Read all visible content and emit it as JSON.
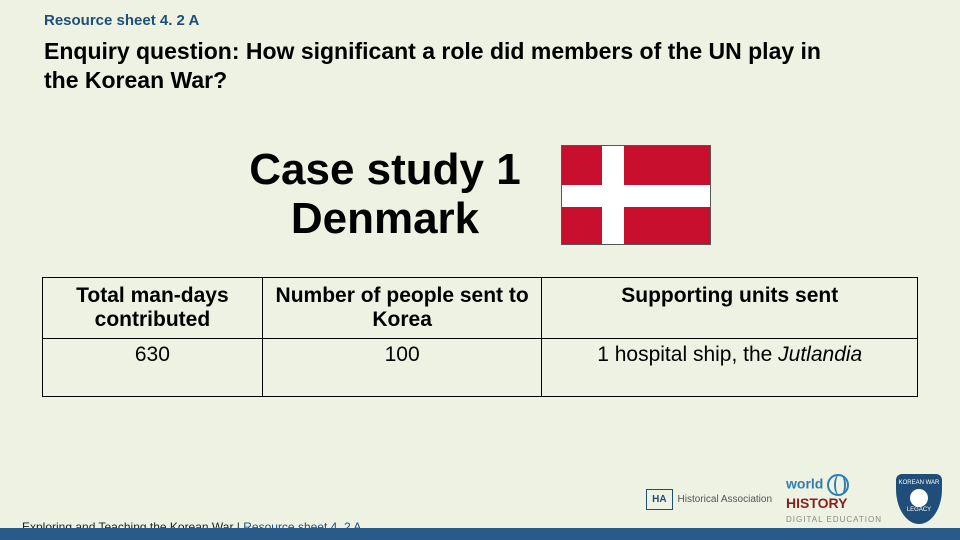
{
  "header": {
    "resource_label": "Resource sheet 4. 2 A",
    "enquiry": "Enquiry question: How significant a role did members of the UN play in the Korean War?"
  },
  "case": {
    "title_line1": "Case study 1",
    "title_line2": "Denmark",
    "flag": {
      "bg_color": "#c8102e",
      "cross_color": "#ffffff"
    }
  },
  "table": {
    "headers": [
      "Total man-days contributed",
      "Number of people sent to Korea",
      "Supporting units sent"
    ],
    "values": {
      "man_days": "630",
      "people_sent": "100",
      "support_prefix": "1 hospital ship, the ",
      "support_ship": "Jutlandia"
    }
  },
  "footer": {
    "line_dark": "Exploring and Teaching the Korean War | ",
    "line_blue": "Resource sheet 4. 2 A",
    "logo_ha_box": "HA",
    "logo_ha_text": "Historical Association",
    "logo_world_w1": "world",
    "logo_world_w2": "HISTORY",
    "logo_world_sub": "DIGITAL EDUCATION",
    "shield_l1": "KOREAN WAR",
    "shield_l2": "LEGACY"
  },
  "colors": {
    "page_bg": "#eef2e3",
    "brand_blue": "#1f4e79",
    "strip_blue": "#2a5a8a"
  }
}
